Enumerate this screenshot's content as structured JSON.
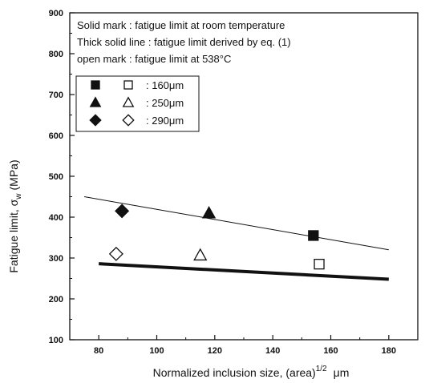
{
  "chart_data": {
    "type": "scatter",
    "xlabel_main": "Normalized inclusion size, (area)",
    "xlabel_sup": "1/2",
    "xlabel_unit": "μm",
    "ylabel_main": "Fatigue limit, σ",
    "ylabel_sub": "w",
    "ylabel_unit": "(MPa)",
    "xlim": [
      70,
      190
    ],
    "ylim": [
      100,
      900
    ],
    "xticks": [
      80,
      100,
      120,
      140,
      160,
      180
    ],
    "yticks": [
      100,
      200,
      300,
      400,
      500,
      600,
      700,
      800,
      900
    ],
    "notes": [
      "Solid mark : fatigue limit at room temperature",
      "Thick solid line : fatigue limit derived by eq. (1)",
      "open mark : fatigue limit at 538°C"
    ],
    "legend": [
      {
        "label": ": 160μm",
        "shape": "square"
      },
      {
        "label": ": 250μm",
        "shape": "triangle"
      },
      {
        "label": ": 290μm",
        "shape": "diamond"
      }
    ],
    "points": {
      "solid": [
        {
          "shape": "square",
          "x": 154,
          "y": 355
        },
        {
          "shape": "triangle",
          "x": 118,
          "y": 410
        },
        {
          "shape": "diamond",
          "x": 88,
          "y": 415
        }
      ],
      "open": [
        {
          "shape": "square",
          "x": 156,
          "y": 285
        },
        {
          "shape": "triangle",
          "x": 115,
          "y": 307
        },
        {
          "shape": "diamond",
          "x": 86,
          "y": 310
        }
      ]
    },
    "lines": [
      {
        "style": "thin",
        "x": [
          75,
          180
        ],
        "y": [
          450,
          320
        ]
      },
      {
        "style": "thick",
        "x": [
          80,
          180
        ],
        "y": [
          286,
          248
        ]
      }
    ]
  }
}
